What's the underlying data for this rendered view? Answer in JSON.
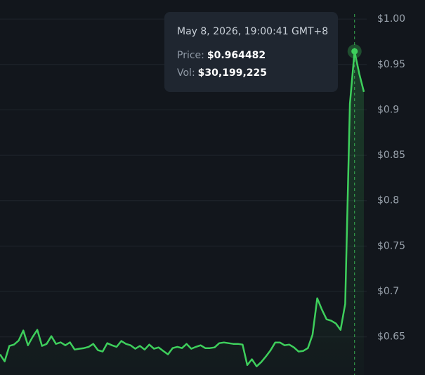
{
  "chart_data": {
    "type": "line",
    "values": [
      0.6307,
      0.623,
      0.64,
      0.6415,
      0.646,
      0.657,
      0.6407,
      0.65,
      0.6577,
      0.64,
      0.6423,
      0.6508,
      0.6423,
      0.644,
      0.6407,
      0.644,
      0.636,
      0.6369,
      0.6376,
      0.639,
      0.6423,
      0.6353,
      0.6338,
      0.643,
      0.6407,
      0.639,
      0.6454,
      0.6423,
      0.6407,
      0.6369,
      0.64,
      0.636,
      0.6415,
      0.6369,
      0.6384,
      0.6345,
      0.6307,
      0.6376,
      0.639,
      0.6376,
      0.6423,
      0.6369,
      0.639,
      0.6407,
      0.6376,
      0.6376,
      0.6384,
      0.643,
      0.6438,
      0.643,
      0.6423,
      0.6423,
      0.6415,
      0.619,
      0.6253,
      0.6175,
      0.6222,
      0.6284,
      0.6353,
      0.6438,
      0.6438,
      0.6407,
      0.6415,
      0.6384,
      0.6338,
      0.6345,
      0.6376,
      0.6523,
      0.6925,
      0.6801,
      0.6693,
      0.6678,
      0.6647,
      0.6577,
      0.6863,
      0.9066,
      0.964482,
      0.9399,
      0.9198
    ],
    "color": "#3ecf5c",
    "ylim": [
      0.608,
      1.021
    ],
    "yticks": [
      {
        "value": 1.0,
        "label": "$1.00"
      },
      {
        "value": 0.95,
        "label": "$0.95"
      },
      {
        "value": 0.9,
        "label": "$0.9"
      },
      {
        "value": 0.85,
        "label": "$0.85"
      },
      {
        "value": 0.8,
        "label": "$0.8"
      },
      {
        "value": 0.75,
        "label": "$0.75"
      },
      {
        "value": 0.7,
        "label": "$0.7"
      },
      {
        "value": 0.65,
        "label": "$0.65"
      }
    ],
    "grid": true,
    "tooltip": {
      "date": "May 8, 2026, 19:00:41 GMT+8",
      "price_label": "Price:",
      "price": "$0.964482",
      "vol_label": "Vol:",
      "vol": "$30,199,225"
    }
  }
}
